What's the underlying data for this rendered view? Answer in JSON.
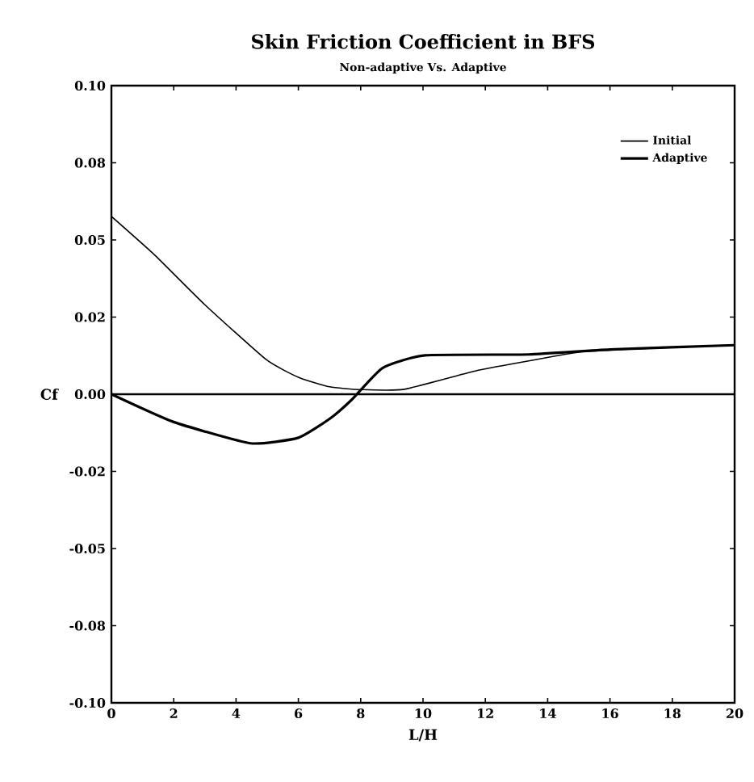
{
  "chart_data": {
    "type": "line",
    "title": "Skin Friction Coefficient in BFS",
    "subtitle": "Non-adaptive Vs. Adaptive",
    "xlabel": "L/H",
    "ylabel": "Cf",
    "xlim": [
      0,
      20
    ],
    "ylim": [
      -0.1,
      0.1
    ],
    "xticks": [
      0,
      2,
      4,
      6,
      8,
      10,
      12,
      14,
      16,
      18,
      20
    ],
    "yticks": [
      {
        "value": -0.1,
        "label": "-0.10"
      },
      {
        "value": -0.075,
        "label": "-0.08"
      },
      {
        "value": -0.05,
        "label": "-0.05"
      },
      {
        "value": -0.025,
        "label": "-0.02"
      },
      {
        "value": 0,
        "label": "0.00"
      },
      {
        "value": 0.025,
        "label": "0.02"
      },
      {
        "value": 0.05,
        "label": "0.05"
      },
      {
        "value": 0.075,
        "label": "0.08"
      },
      {
        "value": 0.1,
        "label": "0.10"
      }
    ],
    "legend": "top right",
    "grid": false,
    "marker": "none",
    "line_style": "solid",
    "ref_lines": [
      {
        "axis": "y",
        "value": 0,
        "color": "#000000"
      }
    ],
    "series": [
      {
        "name": "Initial",
        "color": "#000000",
        "x": [
          0,
          1.4,
          3,
          4.97,
          6,
          7,
          8,
          9.4,
          11.75,
          13.5,
          15.15,
          17.5,
          20
        ],
        "values": [
          0.0576,
          0.045,
          0.029,
          0.0112,
          0.0055,
          0.0024,
          0.0015,
          0.0016,
          0.0077,
          0.011,
          0.0138,
          0.015,
          0.0159
        ]
      },
      {
        "name": "Adaptive",
        "color": "#000000",
        "x": [
          0,
          2,
          4.46,
          6,
          7,
          7.7,
          8.7,
          10.06,
          13.4,
          16,
          20
        ],
        "values": [
          0,
          -0.009,
          -0.0159,
          -0.0141,
          -0.008,
          -0.0019,
          0.0085,
          0.0126,
          0.0129,
          0.0145,
          0.0159
        ]
      }
    ]
  }
}
